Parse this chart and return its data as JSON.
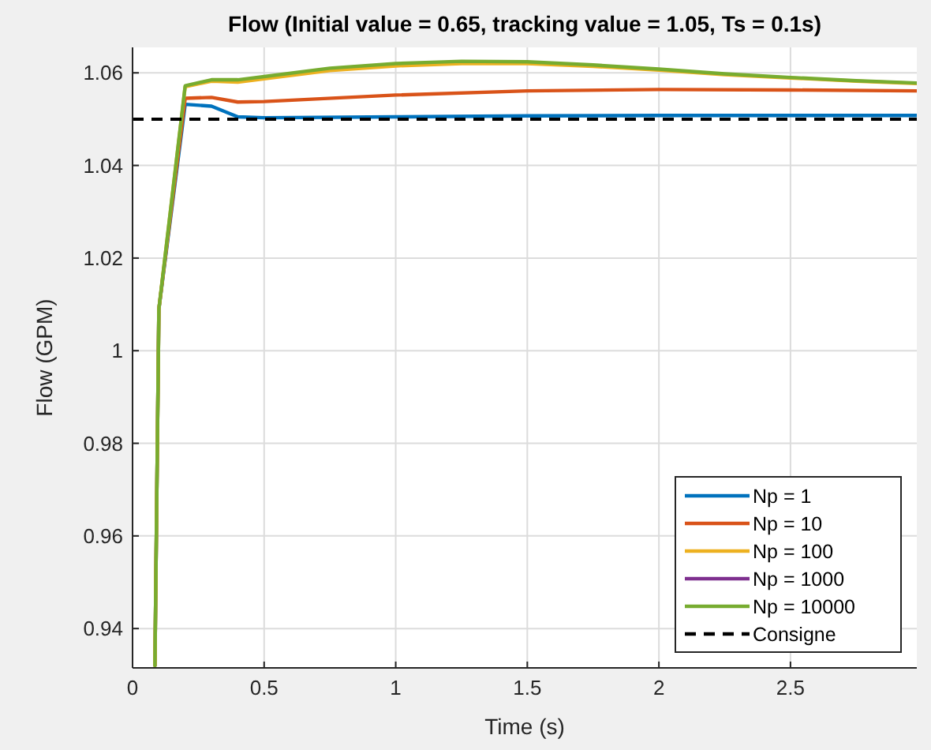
{
  "chart_data": {
    "type": "line",
    "title": "Flow (Initial value = 0.65, tracking value = 1.05, Ts = 0.1s)",
    "xlabel": "Time (s)",
    "ylabel": "Flow (GPM)",
    "xlim": [
      0,
      2.98
    ],
    "xticks": [
      0,
      0.5,
      1,
      1.5,
      2,
      2.5
    ],
    "ylim": [
      0.9315,
      1.0655
    ],
    "yticks": [
      0.94,
      0.96,
      0.98,
      1,
      1.02,
      1.04,
      1.06
    ],
    "grid": true,
    "legend": "bottom right",
    "line_style": "solid",
    "series": [
      {
        "name": "Np = 1",
        "color": "#0072bd",
        "x": [
          0.085,
          0.1,
          0.2,
          0.3,
          0.4,
          0.5,
          1,
          1.5,
          2,
          2.5,
          2.98
        ],
        "values": [
          0.932,
          1.009,
          1.0532,
          1.0528,
          1.0505,
          1.0503,
          1.0505,
          1.0507,
          1.0508,
          1.0508,
          1.0508
        ]
      },
      {
        "name": "Np = 10",
        "color": "#d95319",
        "x": [
          0.085,
          0.1,
          0.2,
          0.3,
          0.4,
          0.5,
          1,
          1.5,
          2,
          2.5,
          2.98
        ],
        "values": [
          0.932,
          1.009,
          1.0545,
          1.0547,
          1.0537,
          1.0538,
          1.0552,
          1.0561,
          1.0564,
          1.0563,
          1.0561
        ]
      },
      {
        "name": "Np = 100",
        "color": "#edb120",
        "x": [
          0.085,
          0.1,
          0.2,
          0.3,
          0.4,
          0.5,
          0.75,
          1,
          1.25,
          1.5,
          1.75,
          2,
          2.25,
          2.5,
          2.75,
          2.98
        ],
        "values": [
          0.932,
          1.009,
          1.057,
          1.0582,
          1.058,
          1.0587,
          1.0605,
          1.0615,
          1.062,
          1.062,
          1.0614,
          1.0606,
          1.0596,
          1.0589,
          1.0582,
          1.0577
        ]
      },
      {
        "name": "Np = 1000",
        "color": "#7e2f8e"
      },
      {
        "name": "Np = 10000",
        "color": "#77ac30",
        "x": [
          0.085,
          0.1,
          0.2,
          0.3,
          0.4,
          0.5,
          0.75,
          1,
          1.25,
          1.5,
          1.75,
          2,
          2.25,
          2.5,
          2.75,
          2.98
        ],
        "values": [
          0.932,
          1.009,
          1.0572,
          1.0585,
          1.0585,
          1.0592,
          1.061,
          1.062,
          1.0625,
          1.0624,
          1.0617,
          1.0608,
          1.0598,
          1.059,
          1.0583,
          1.0578
        ]
      }
    ],
    "ref_lines": [
      {
        "axis": "y",
        "value": 1.05,
        "label": "Consigne",
        "color": "#000000",
        "line_style": "dashed"
      }
    ]
  }
}
